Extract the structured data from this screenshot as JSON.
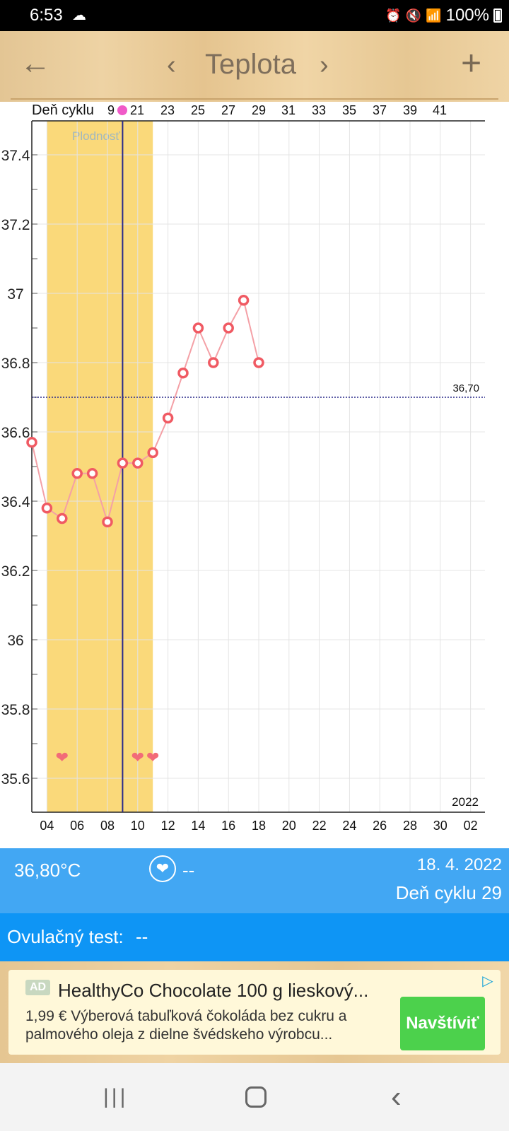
{
  "status_bar": {
    "time": "6:53",
    "weather_icon": "cloud-icon",
    "battery": "100%",
    "icons": [
      "alarm-icon",
      "mute-icon",
      "wifi-icon",
      "volte-icon",
      "signal-icon",
      "battery-icon"
    ]
  },
  "toolbar": {
    "title": "Teplota",
    "back_icon": "←",
    "prev_icon": "‹",
    "next_icon": "›",
    "add_icon": "+"
  },
  "chart_data": {
    "type": "line",
    "title": "",
    "top_axis_label": "Deň cyklu",
    "top_axis_ticks": [
      "9",
      "21",
      "23",
      "25",
      "27",
      "29",
      "31",
      "33",
      "35",
      "37",
      "39",
      "41"
    ],
    "x_ticks": [
      "04",
      "06",
      "08",
      "10",
      "12",
      "14",
      "16",
      "18",
      "20",
      "22",
      "24",
      "26",
      "28",
      "30",
      "02"
    ],
    "year_label": "2022",
    "y_ticks": [
      "37.4",
      "37.2",
      "37",
      "36.8",
      "36.6",
      "36.4",
      "36.2",
      "36",
      "35.8",
      "35.6"
    ],
    "ylim": [
      35.5,
      37.5
    ],
    "fertile_label": "Plodnosť",
    "fertile_range_days": [
      4,
      11
    ],
    "ovulation_day": 9,
    "coverline": {
      "value": 36.7,
      "label": "36,70"
    },
    "series": [
      {
        "x": [
          3,
          4,
          5,
          6,
          7,
          8,
          9,
          10,
          11,
          12,
          13,
          14,
          15,
          16,
          17,
          18
        ],
        "values": [
          36.57,
          36.38,
          36.35,
          36.48,
          36.48,
          36.34,
          36.51,
          36.51,
          36.54,
          36.64,
          36.77,
          36.9,
          36.8,
          36.9,
          36.98,
          36.8
        ]
      }
    ],
    "intercourse_days": [
      5,
      10,
      11
    ],
    "colors": {
      "line": "#f4a0a6",
      "point": "#f05a63",
      "fertile": "#fad97a",
      "ovulation_line": "#2a2a8a",
      "coverline": "#2a2a8a"
    }
  },
  "info": {
    "temperature": "36,80°C",
    "heart_icon": "heart-icon",
    "heart_value": "--",
    "date": "18. 4. 2022",
    "cycle_day": "Deň cyklu 29"
  },
  "ovulation_test": {
    "label": "Ovulačný test:",
    "value": "--"
  },
  "ad": {
    "badge": "AD",
    "title": "HealthyCo Chocolate 100 g lieskový...",
    "desc_line1": "1,99 € Výberová tabuľková čokoláda bez cukru a",
    "desc_line2": "palmového oleja z dielne švédskeho výrobcu...",
    "cta": "Navštíviť"
  },
  "colors": {
    "info_bar": "#42a7f3",
    "ovulation_bar": "#0e95f5",
    "cta": "#4cd14c"
  }
}
